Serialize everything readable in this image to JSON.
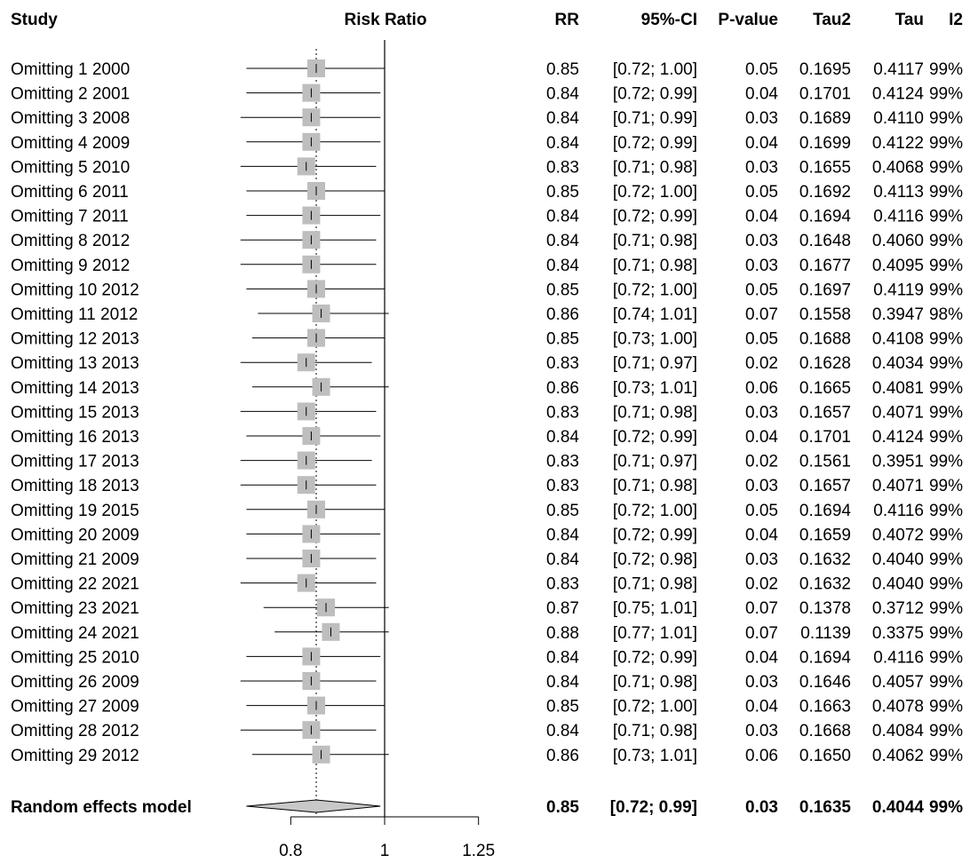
{
  "chart_data": {
    "type": "forest",
    "headers": {
      "study": "Study",
      "plot": "Risk Ratio",
      "rr": "RR",
      "ci": "95%-CI",
      "p": "P-value",
      "tau2": "Tau2",
      "tau": "Tau",
      "i2": "I2"
    },
    "x_scale": "log",
    "xlim": [
      0.7,
      1.4
    ],
    "xticks": [
      0.8,
      1,
      1.25
    ],
    "xtick_labels": [
      "0.8",
      "1",
      "1.25"
    ],
    "reference_line": 1,
    "pooled_line": 0.85,
    "rows": [
      {
        "study": "Omitting 1 2000",
        "rr": 0.85,
        "lo": 0.72,
        "hi": 1.0,
        "rr_text": "0.85",
        "ci_text": "[0.72; 1.00]",
        "p": "0.05",
        "tau2": "0.1695",
        "tau": "0.4117",
        "i2": "99%"
      },
      {
        "study": "Omitting 2 2001",
        "rr": 0.84,
        "lo": 0.72,
        "hi": 0.99,
        "rr_text": "0.84",
        "ci_text": "[0.72; 0.99]",
        "p": "0.04",
        "tau2": "0.1701",
        "tau": "0.4124",
        "i2": "99%"
      },
      {
        "study": "Omitting 3 2008",
        "rr": 0.84,
        "lo": 0.71,
        "hi": 0.99,
        "rr_text": "0.84",
        "ci_text": "[0.71; 0.99]",
        "p": "0.03",
        "tau2": "0.1689",
        "tau": "0.4110",
        "i2": "99%"
      },
      {
        "study": "Omitting 4 2009",
        "rr": 0.84,
        "lo": 0.72,
        "hi": 0.99,
        "rr_text": "0.84",
        "ci_text": "[0.72; 0.99]",
        "p": "0.04",
        "tau2": "0.1699",
        "tau": "0.4122",
        "i2": "99%"
      },
      {
        "study": "Omitting 5 2010",
        "rr": 0.83,
        "lo": 0.71,
        "hi": 0.98,
        "rr_text": "0.83",
        "ci_text": "[0.71; 0.98]",
        "p": "0.03",
        "tau2": "0.1655",
        "tau": "0.4068",
        "i2": "99%"
      },
      {
        "study": "Omitting 6 2011",
        "rr": 0.85,
        "lo": 0.72,
        "hi": 1.0,
        "rr_text": "0.85",
        "ci_text": "[0.72; 1.00]",
        "p": "0.05",
        "tau2": "0.1692",
        "tau": "0.4113",
        "i2": "99%"
      },
      {
        "study": "Omitting 7 2011",
        "rr": 0.84,
        "lo": 0.72,
        "hi": 0.99,
        "rr_text": "0.84",
        "ci_text": "[0.72; 0.99]",
        "p": "0.04",
        "tau2": "0.1694",
        "tau": "0.4116",
        "i2": "99%"
      },
      {
        "study": "Omitting 8 2012",
        "rr": 0.84,
        "lo": 0.71,
        "hi": 0.98,
        "rr_text": "0.84",
        "ci_text": "[0.71; 0.98]",
        "p": "0.03",
        "tau2": "0.1648",
        "tau": "0.4060",
        "i2": "99%"
      },
      {
        "study": "Omitting 9 2012",
        "rr": 0.84,
        "lo": 0.71,
        "hi": 0.98,
        "rr_text": "0.84",
        "ci_text": "[0.71; 0.98]",
        "p": "0.03",
        "tau2": "0.1677",
        "tau": "0.4095",
        "i2": "99%"
      },
      {
        "study": "Omitting 10 2012",
        "rr": 0.85,
        "lo": 0.72,
        "hi": 1.0,
        "rr_text": "0.85",
        "ci_text": "[0.72; 1.00]",
        "p": "0.05",
        "tau2": "0.1697",
        "tau": "0.4119",
        "i2": "99%"
      },
      {
        "study": "Omitting 11 2012",
        "rr": 0.86,
        "lo": 0.74,
        "hi": 1.01,
        "rr_text": "0.86",
        "ci_text": "[0.74; 1.01]",
        "p": "0.07",
        "tau2": "0.1558",
        "tau": "0.3947",
        "i2": "98%"
      },
      {
        "study": "Omitting 12 2013",
        "rr": 0.85,
        "lo": 0.73,
        "hi": 1.0,
        "rr_text": "0.85",
        "ci_text": "[0.73; 1.00]",
        "p": "0.05",
        "tau2": "0.1688",
        "tau": "0.4108",
        "i2": "99%"
      },
      {
        "study": "Omitting 13 2013",
        "rr": 0.83,
        "lo": 0.71,
        "hi": 0.97,
        "rr_text": "0.83",
        "ci_text": "[0.71; 0.97]",
        "p": "0.02",
        "tau2": "0.1628",
        "tau": "0.4034",
        "i2": "99%"
      },
      {
        "study": "Omitting 14 2013",
        "rr": 0.86,
        "lo": 0.73,
        "hi": 1.01,
        "rr_text": "0.86",
        "ci_text": "[0.73; 1.01]",
        "p": "0.06",
        "tau2": "0.1665",
        "tau": "0.4081",
        "i2": "99%"
      },
      {
        "study": "Omitting 15 2013",
        "rr": 0.83,
        "lo": 0.71,
        "hi": 0.98,
        "rr_text": "0.83",
        "ci_text": "[0.71; 0.98]",
        "p": "0.03",
        "tau2": "0.1657",
        "tau": "0.4071",
        "i2": "99%"
      },
      {
        "study": "Omitting 16 2013",
        "rr": 0.84,
        "lo": 0.72,
        "hi": 0.99,
        "rr_text": "0.84",
        "ci_text": "[0.72; 0.99]",
        "p": "0.04",
        "tau2": "0.1701",
        "tau": "0.4124",
        "i2": "99%"
      },
      {
        "study": "Omitting 17 2013",
        "rr": 0.83,
        "lo": 0.71,
        "hi": 0.97,
        "rr_text": "0.83",
        "ci_text": "[0.71; 0.97]",
        "p": "0.02",
        "tau2": "0.1561",
        "tau": "0.3951",
        "i2": "99%"
      },
      {
        "study": "Omitting 18 2013",
        "rr": 0.83,
        "lo": 0.71,
        "hi": 0.98,
        "rr_text": "0.83",
        "ci_text": "[0.71; 0.98]",
        "p": "0.03",
        "tau2": "0.1657",
        "tau": "0.4071",
        "i2": "99%"
      },
      {
        "study": "Omitting 19 2015",
        "rr": 0.85,
        "lo": 0.72,
        "hi": 1.0,
        "rr_text": "0.85",
        "ci_text": "[0.72; 1.00]",
        "p": "0.05",
        "tau2": "0.1694",
        "tau": "0.4116",
        "i2": "99%"
      },
      {
        "study": "Omitting 20 2009",
        "rr": 0.84,
        "lo": 0.72,
        "hi": 0.99,
        "rr_text": "0.84",
        "ci_text": "[0.72; 0.99]",
        "p": "0.04",
        "tau2": "0.1659",
        "tau": "0.4072",
        "i2": "99%"
      },
      {
        "study": "Omitting 21 2009",
        "rr": 0.84,
        "lo": 0.72,
        "hi": 0.98,
        "rr_text": "0.84",
        "ci_text": "[0.72; 0.98]",
        "p": "0.03",
        "tau2": "0.1632",
        "tau": "0.4040",
        "i2": "99%"
      },
      {
        "study": "Omitting 22 2021",
        "rr": 0.83,
        "lo": 0.71,
        "hi": 0.98,
        "rr_text": "0.83",
        "ci_text": "[0.71; 0.98]",
        "p": "0.02",
        "tau2": "0.1632",
        "tau": "0.4040",
        "i2": "99%"
      },
      {
        "study": "Omitting 23 2021",
        "rr": 0.87,
        "lo": 0.75,
        "hi": 1.01,
        "rr_text": "0.87",
        "ci_text": "[0.75; 1.01]",
        "p": "0.07",
        "tau2": "0.1378",
        "tau": "0.3712",
        "i2": "99%"
      },
      {
        "study": "Omitting 24 2021",
        "rr": 0.88,
        "lo": 0.77,
        "hi": 1.01,
        "rr_text": "0.88",
        "ci_text": "[0.77; 1.01]",
        "p": "0.07",
        "tau2": "0.1139",
        "tau": "0.3375",
        "i2": "99%"
      },
      {
        "study": "Omitting 25 2010",
        "rr": 0.84,
        "lo": 0.72,
        "hi": 0.99,
        "rr_text": "0.84",
        "ci_text": "[0.72; 0.99]",
        "p": "0.04",
        "tau2": "0.1694",
        "tau": "0.4116",
        "i2": "99%"
      },
      {
        "study": "Omitting 26 2009",
        "rr": 0.84,
        "lo": 0.71,
        "hi": 0.98,
        "rr_text": "0.84",
        "ci_text": "[0.71; 0.98]",
        "p": "0.03",
        "tau2": "0.1646",
        "tau": "0.4057",
        "i2": "99%"
      },
      {
        "study": "Omitting 27 2009",
        "rr": 0.85,
        "lo": 0.72,
        "hi": 1.0,
        "rr_text": "0.85",
        "ci_text": "[0.72; 1.00]",
        "p": "0.04",
        "tau2": "0.1663",
        "tau": "0.4078",
        "i2": "99%"
      },
      {
        "study": "Omitting 28 2012",
        "rr": 0.84,
        "lo": 0.71,
        "hi": 0.98,
        "rr_text": "0.84",
        "ci_text": "[0.71; 0.98]",
        "p": "0.03",
        "tau2": "0.1668",
        "tau": "0.4084",
        "i2": "99%"
      },
      {
        "study": "Omitting 29 2012",
        "rr": 0.86,
        "lo": 0.73,
        "hi": 1.01,
        "rr_text": "0.86",
        "ci_text": "[0.73; 1.01]",
        "p": "0.06",
        "tau2": "0.1650",
        "tau": "0.4062",
        "i2": "99%"
      }
    ],
    "pooled": {
      "study": "Random effects model",
      "rr": 0.85,
      "lo": 0.72,
      "hi": 0.99,
      "rr_text": "0.85",
      "ci_text": "[0.72; 0.99]",
      "p": "0.03",
      "tau2": "0.1635",
      "tau": "0.4044",
      "i2": "99%"
    },
    "colors": {
      "marker": "#bebebe",
      "diamond": "#c8c8c8",
      "line": "#000000"
    }
  }
}
